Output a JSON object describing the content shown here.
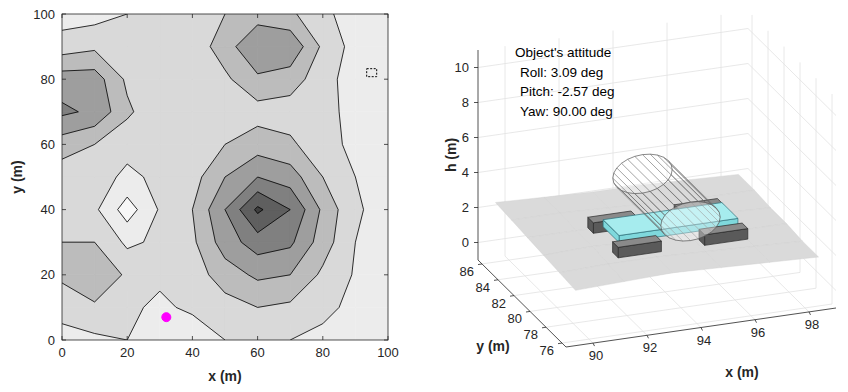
{
  "chart_data": [
    {
      "type": "contour",
      "xlabel": "x (m)",
      "ylabel": "y (m)",
      "xlim": [
        0,
        100
      ],
      "ylim": [
        0,
        100
      ],
      "xticks": [
        0,
        20,
        40,
        60,
        80,
        100
      ],
      "yticks": [
        0,
        20,
        40,
        60,
        80,
        100
      ],
      "x": [
        0,
        10,
        20,
        30,
        40,
        50,
        60,
        70,
        80,
        90,
        100
      ],
      "y": [
        0,
        10,
        20,
        30,
        40,
        50,
        60,
        70,
        80,
        90,
        100
      ],
      "z": [
        [
          1.6,
          1.8,
          2.0,
          1.4,
          1.3,
          2.0,
          2.2,
          2.0,
          1.8,
          1.6,
          1.6
        ],
        [
          2.4,
          2.8,
          2.2,
          1.8,
          2.2,
          2.6,
          3.0,
          2.8,
          2.2,
          1.8,
          1.7
        ],
        [
          3.2,
          4.0,
          2.8,
          2.2,
          2.5,
          3.5,
          4.2,
          4.0,
          2.8,
          1.9,
          1.7
        ],
        [
          3.0,
          3.0,
          1.8,
          2.2,
          2.8,
          4.5,
          5.5,
          5.2,
          3.5,
          2.0,
          1.7
        ],
        [
          2.6,
          2.2,
          0.5,
          2.1,
          3.0,
          5.0,
          7.2,
          6.0,
          3.8,
          2.1,
          1.7
        ],
        [
          2.4,
          2.4,
          1.8,
          2.2,
          2.6,
          4.0,
          5.0,
          4.5,
          3.0,
          2.0,
          1.7
        ],
        [
          3.5,
          3.0,
          2.3,
          2.2,
          2.4,
          3.0,
          3.5,
          3.2,
          2.3,
          1.8,
          1.6
        ],
        [
          5.2,
          4.8,
          3.2,
          2.2,
          2.1,
          2.5,
          2.6,
          2.5,
          2.2,
          1.8,
          1.6
        ],
        [
          4.5,
          4.5,
          2.8,
          2.2,
          2.3,
          2.8,
          3.8,
          3.5,
          2.4,
          1.5,
          1.5
        ],
        [
          2.5,
          2.8,
          2.3,
          2.2,
          2.4,
          3.5,
          5.0,
          4.8,
          2.8,
          1.6,
          1.5
        ],
        [
          1.5,
          1.6,
          2.0,
          2.2,
          2.3,
          3.0,
          3.5,
          3.2,
          2.2,
          1.6,
          1.5
        ]
      ],
      "levels": [
        1,
        2,
        3,
        4,
        5,
        6,
        7
      ],
      "colors": [
        "#f7f7f7",
        "#ececec",
        "#d9d9d9",
        "#bcbcbc",
        "#9e9e9e",
        "#808080",
        "#5f5f5f",
        "#404040"
      ],
      "points": [
        {
          "x": 32,
          "y": 7,
          "color": "#ff00ff",
          "marker": "circle"
        },
        {
          "x": 95,
          "y": 82,
          "color": "#000000",
          "marker": "square"
        }
      ]
    },
    {
      "type": "surface3d",
      "xlabel": "x (m)",
      "ylabel": "y (m)",
      "zlabel": "h (m)",
      "xlim": [
        89,
        99
      ],
      "ylim": [
        75.5,
        86.5
      ],
      "zlim": [
        -1,
        11
      ],
      "xticks": [
        90,
        92,
        94,
        96,
        98
      ],
      "yticks": [
        76,
        78,
        80,
        82,
        84,
        86
      ],
      "zticks": [
        0,
        2,
        4,
        6,
        8,
        10
      ],
      "grid": true,
      "surface": {
        "x": [
          89.5,
          91.3,
          93.1,
          94.9,
          96.7,
          98.5
        ],
        "y": [
          76,
          78,
          80,
          82,
          84,
          86
        ],
        "z": [
          [
            1.9,
            2.0,
            2.1,
            2.0,
            1.9,
            1.8
          ],
          [
            2.0,
            2.1,
            2.1,
            2.0,
            1.9,
            1.8
          ],
          [
            2.1,
            2.2,
            2.1,
            2.0,
            1.9,
            1.9
          ],
          [
            2.2,
            2.2,
            2.1,
            2.0,
            2.0,
            1.9
          ],
          [
            2.3,
            2.3,
            2.2,
            2.1,
            2.0,
            2.0
          ],
          [
            2.4,
            2.3,
            2.2,
            2.2,
            2.1,
            2.0
          ]
        ]
      },
      "object": {
        "x": 94.5,
        "y": 81,
        "h": 2.2
      },
      "annotation": {
        "title": "Object's attitude",
        "lines": [
          {
            "label": "Roll:",
            "value": 3.09,
            "value_label": "3.09",
            "unit": "deg"
          },
          {
            "label": "Pitch:",
            "value": -2.57,
            "value_label": "-2.57",
            "unit": "deg"
          },
          {
            "label": "Yaw:",
            "value": 90.0,
            "value_label": "90.00",
            "unit": "deg"
          }
        ]
      }
    }
  ]
}
